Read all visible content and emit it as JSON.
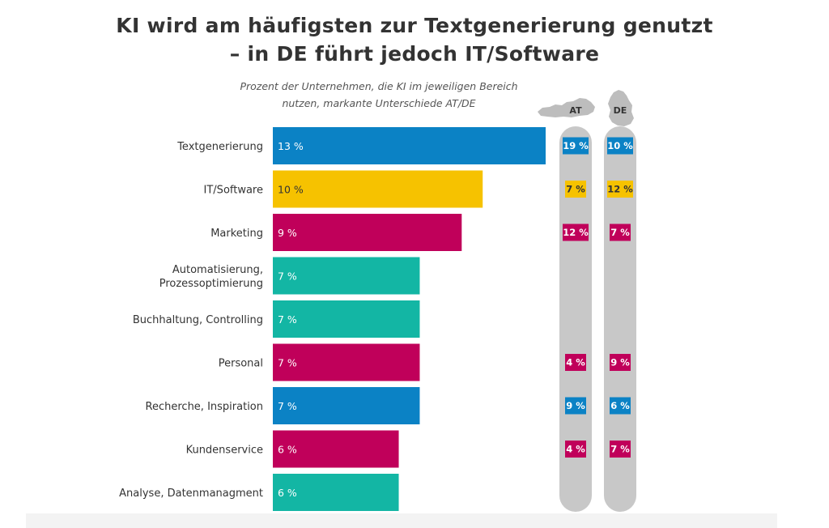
{
  "title_line1": "KI wird am häufigsten zur Textgenerierung genutzt",
  "title_line2": "– in DE führt jedoch IT/Software",
  "subtitle_line1": "Prozent der Unternehmen, die KI im jeweiligen Bereich",
  "subtitle_line2": "nutzen, markante Unterschiede AT/DE",
  "colors": {
    "blue": "#0b82c5",
    "yellow": "#f6c200",
    "magenta": "#c0005a",
    "teal": "#13b6a4",
    "pill": "#c8c8c8"
  },
  "chart_data": {
    "type": "bar",
    "orientation": "horizontal",
    "title": "KI wird am häufigsten zur Textgenerierung genutzt – in DE führt jedoch IT/Software",
    "subtitle": "Prozent der Unternehmen, die KI im jeweiligen Bereich nutzen, markante Unterschiede AT/DE",
    "unit": "%",
    "xlim": [
      0,
      13
    ],
    "columns": {
      "at": {
        "label": "AT",
        "icon": "austria-map-icon"
      },
      "de": {
        "label": "DE",
        "icon": "germany-map-icon"
      }
    },
    "categories": [
      {
        "name": "Textgenerierung",
        "lines": [
          "Textgenerierung"
        ],
        "value": 13,
        "label": "13 %",
        "color": "blue",
        "at": "19 %",
        "at_color": "blue",
        "de": "10 %",
        "de_color": "blue"
      },
      {
        "name": "IT/Software",
        "lines": [
          "IT/Software"
        ],
        "value": 10,
        "label": "10 %",
        "color": "yellow",
        "at": "7 %",
        "at_color": "yellow",
        "de": "12 %",
        "de_color": "yellow"
      },
      {
        "name": "Marketing",
        "lines": [
          "Marketing"
        ],
        "value": 9,
        "label": "9 %",
        "color": "magenta",
        "at": "12 %",
        "at_color": "magenta",
        "de": "7 %",
        "de_color": "magenta"
      },
      {
        "name": "Automatisierung, Prozessoptimierung",
        "lines": [
          "Automatisierung,",
          "Prozessoptimierung"
        ],
        "value": 7,
        "label": "7 %",
        "color": "teal",
        "at": null,
        "at_color": null,
        "de": null,
        "de_color": null
      },
      {
        "name": "Buchhaltung, Controlling",
        "lines": [
          "Buchhaltung, Controlling"
        ],
        "value": 7,
        "label": "7 %",
        "color": "teal",
        "at": null,
        "at_color": null,
        "de": null,
        "de_color": null
      },
      {
        "name": "Personal",
        "lines": [
          "Personal"
        ],
        "value": 7,
        "label": "7 %",
        "color": "magenta",
        "at": "4 %",
        "at_color": "magenta",
        "de": "9 %",
        "de_color": "magenta"
      },
      {
        "name": "Recherche, Inspiration",
        "lines": [
          "Recherche, Inspiration"
        ],
        "value": 7,
        "label": "7 %",
        "color": "blue",
        "at": "9 %",
        "at_color": "blue",
        "de": "6 %",
        "de_color": "blue"
      },
      {
        "name": "Kundenservice",
        "lines": [
          "Kundenservice"
        ],
        "value": 6,
        "label": "6 %",
        "color": "magenta",
        "at": "4 %",
        "at_color": "magenta",
        "de": "7 %",
        "de_color": "magenta"
      },
      {
        "name": "Analyse, Datenmanagment",
        "lines": [
          "Analyse, Datenmanagment"
        ],
        "value": 6,
        "label": "6 %",
        "color": "teal",
        "at": null,
        "at_color": null,
        "de": null,
        "de_color": null
      }
    ]
  }
}
